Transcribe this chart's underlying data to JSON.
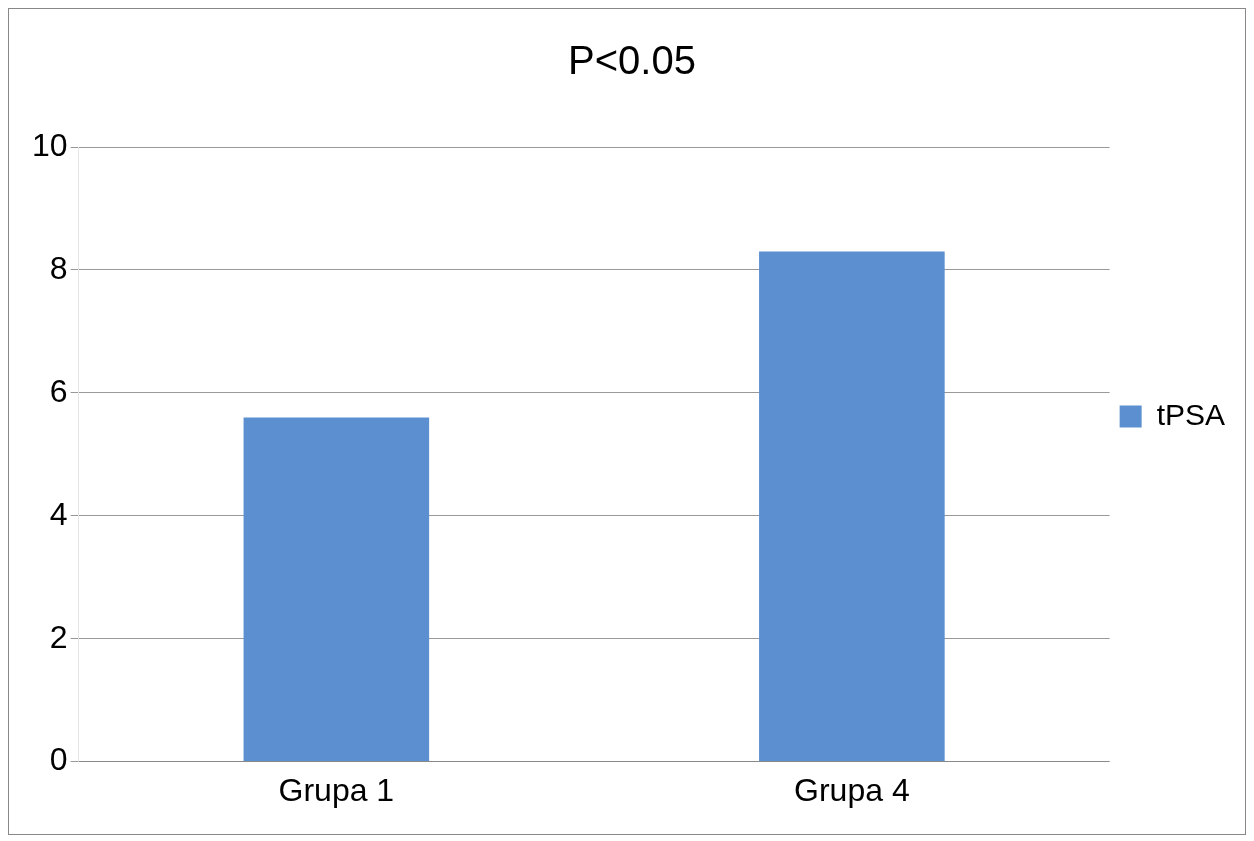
{
  "chart_data": {
    "type": "bar",
    "title": "P<0.05",
    "categories": [
      "Grupa 1",
      "Grupa 4"
    ],
    "series": [
      {
        "name": "tPSA",
        "color": "#5b8fd0",
        "values": [
          5.6,
          8.3
        ]
      }
    ],
    "ylim": [
      0,
      10
    ],
    "yticks": [
      0,
      2,
      4,
      6,
      8,
      10
    ],
    "grid": "y",
    "legend": "right"
  }
}
